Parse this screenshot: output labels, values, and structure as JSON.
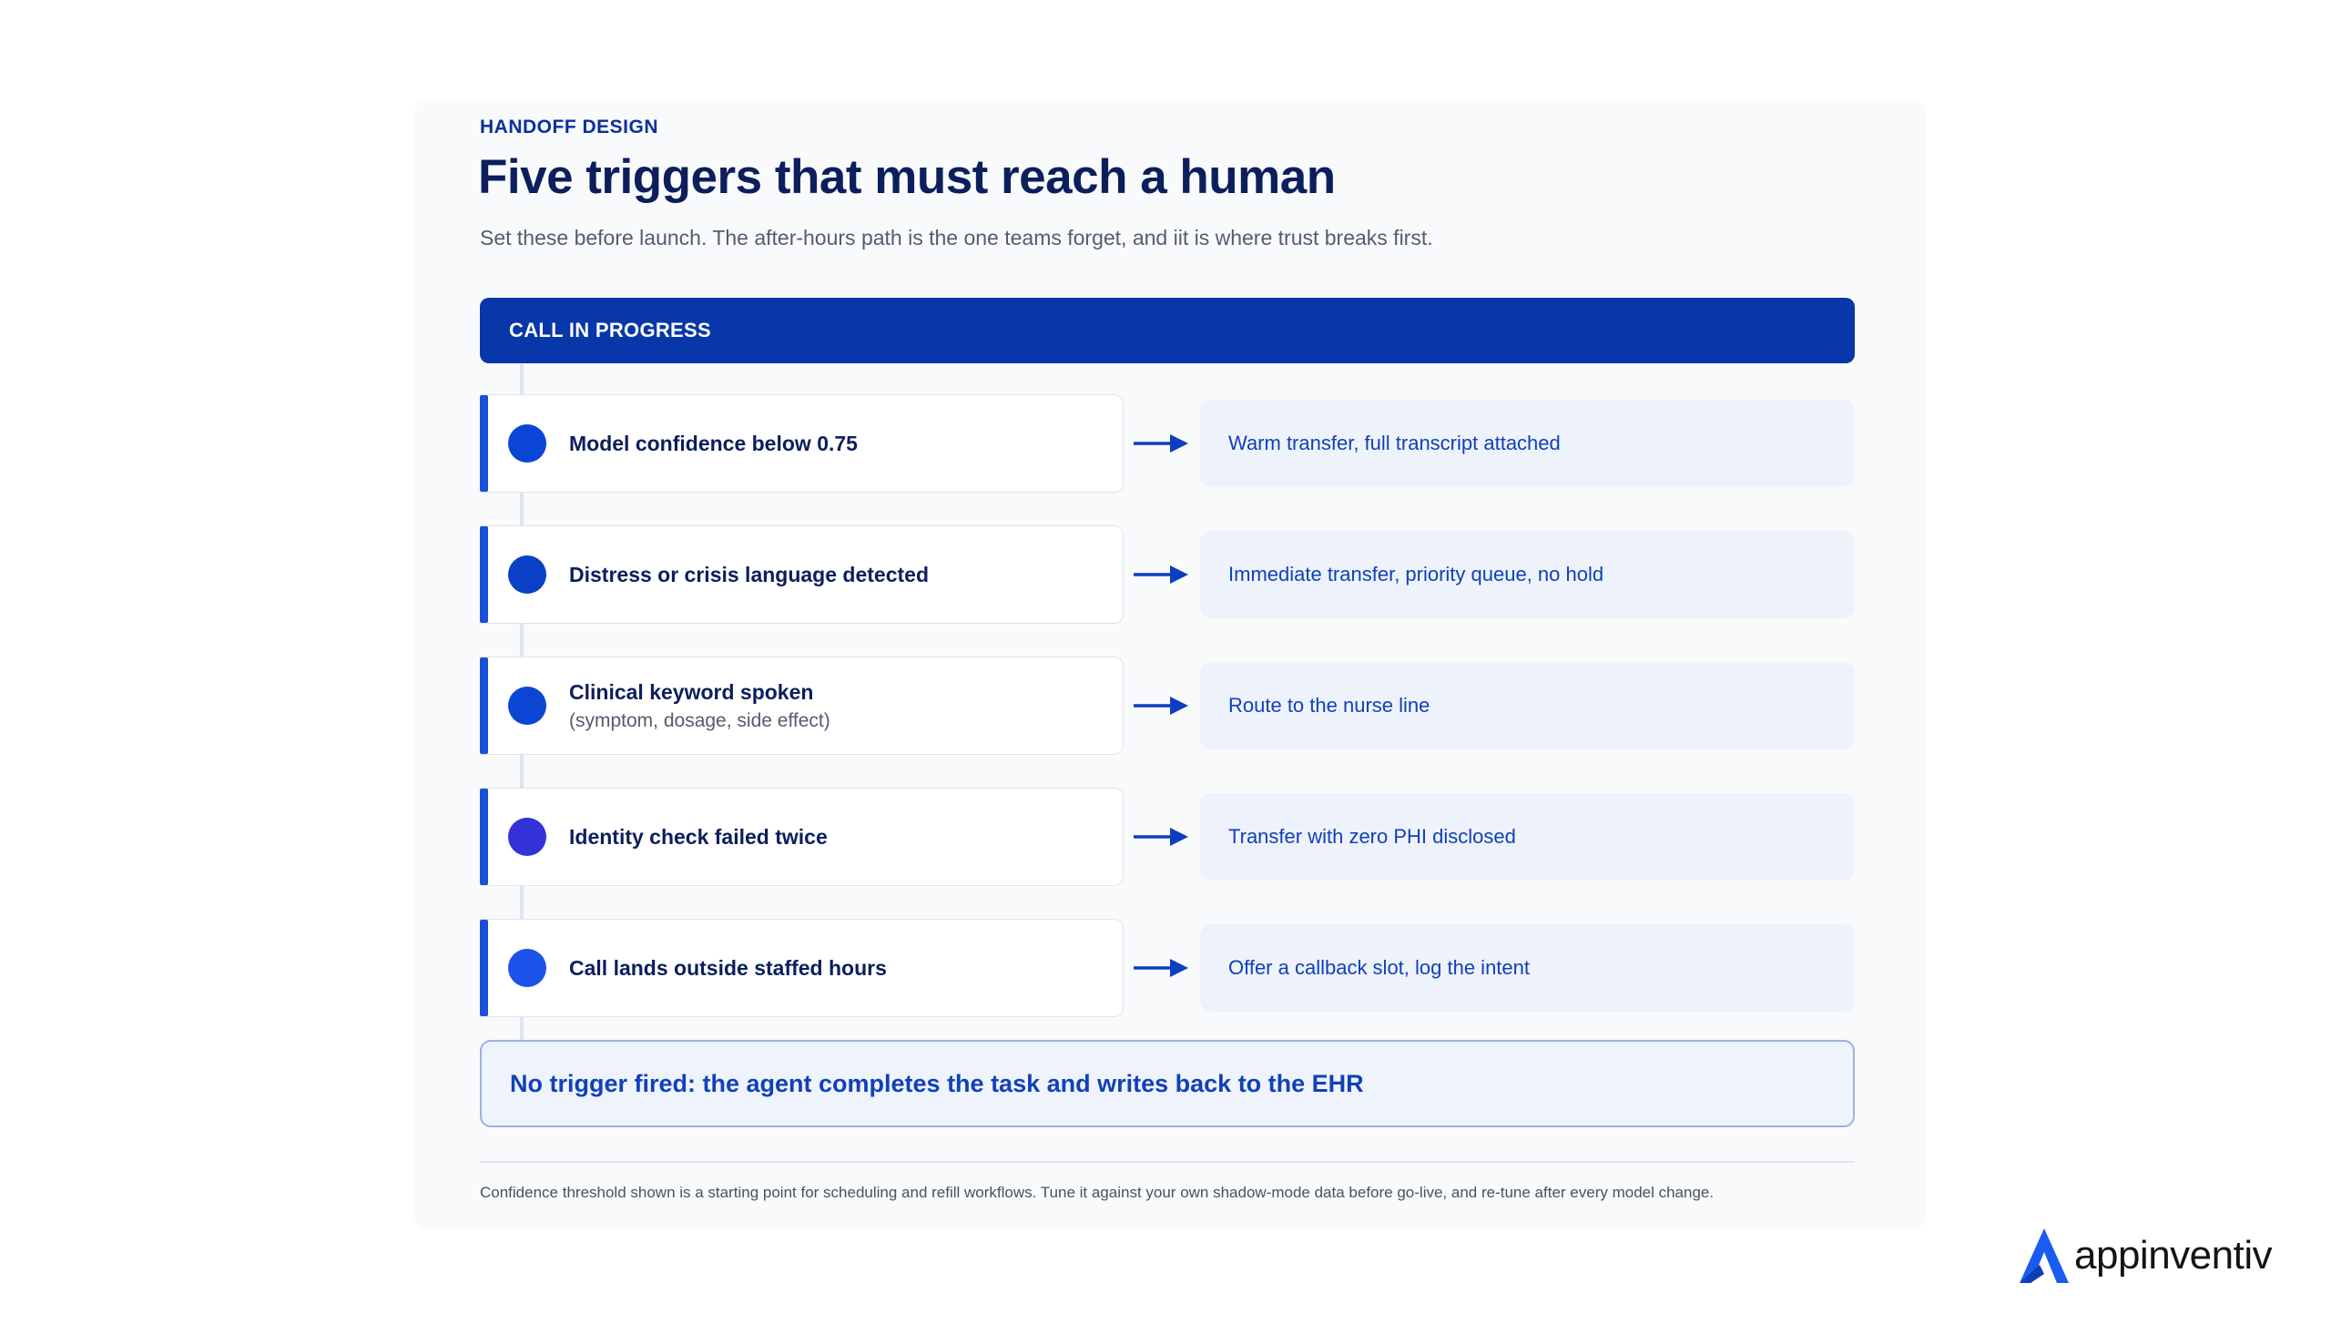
{
  "header": {
    "eyebrow": "HANDOFF DESIGN",
    "title": "Five triggers that must reach a human",
    "subtitle": "Set these before launch. The after-hours path is the one teams forget, and iit is where trust breaks first."
  },
  "banner": {
    "label": "CALL IN PROGRESS"
  },
  "triggers": [
    {
      "label": "Model confidence below 0.75",
      "detail": "",
      "outcome": "Warm transfer, full transcript attached",
      "color": "#0a45d6"
    },
    {
      "label": "Distress or crisis language detected",
      "detail": "",
      "outcome": "Immediate transfer, priority queue, no hold",
      "color": "#0a40c6"
    },
    {
      "label": "Clinical keyword spoken",
      "detail": "(symptom, dosage, side effect)",
      "outcome": "Route to the nurse line",
      "color": "#0b46d2"
    },
    {
      "label": "Identity check failed twice",
      "detail": "",
      "outcome": "Transfer with zero PHI disclosed",
      "color": "#3232d8"
    },
    {
      "label": "Call lands outside staffed hours",
      "detail": "",
      "outcome": "Offer a callback slot, log the intent",
      "color": "#1a52ea"
    }
  ],
  "fallback": {
    "label": "No trigger fired: the agent completes the task and writes back to the EHR"
  },
  "footnote": "Confidence threshold shown is a starting point for scheduling and refill workflows. Tune it against your own shadow-mode data before go-live, and re-tune after every model change.",
  "brand": {
    "name": "appinventiv",
    "color": "#1a5cf0"
  },
  "colors": {
    "primary": "#0737a8",
    "text_dark": "#0c1f5c",
    "outcome_bg": "#eef2fb"
  }
}
